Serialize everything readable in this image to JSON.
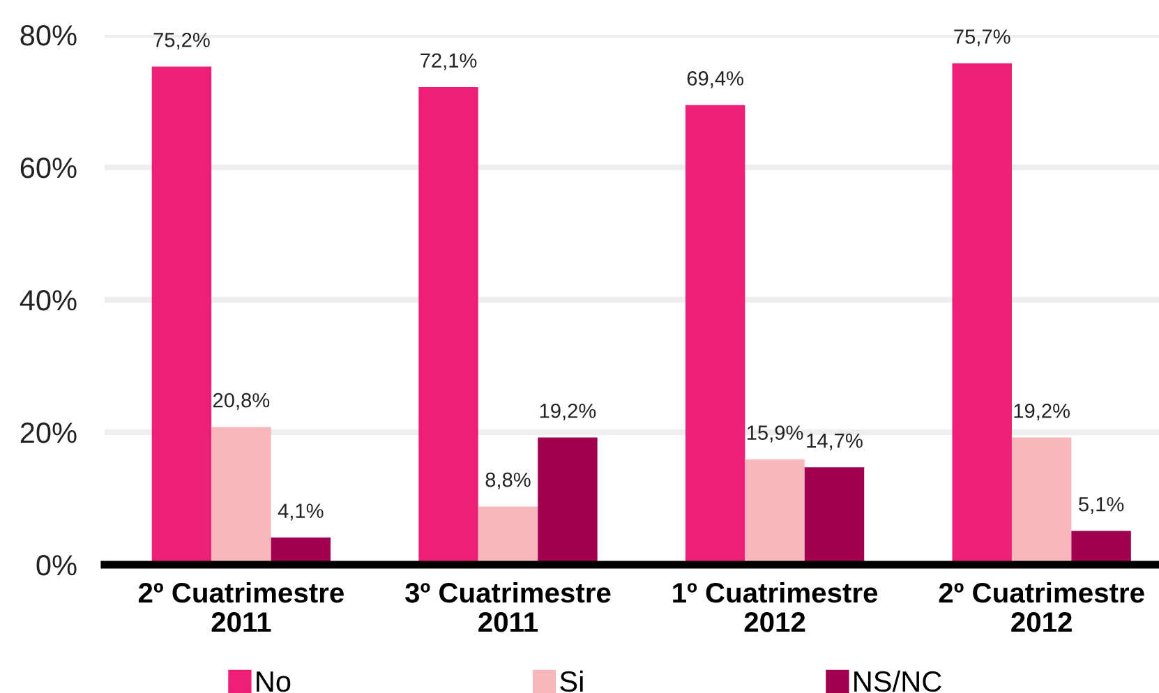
{
  "chart_data": {
    "type": "bar",
    "categories": [
      "2º Cuatrimestre\n2011",
      "3º Cuatrimestre\n2011",
      "1º Cuatrimestre\n2012",
      "2º Cuatrimestre\n2012"
    ],
    "series": [
      {
        "name": "No",
        "color": "#ee1f77",
        "values": [
          75.2,
          72.1,
          69.4,
          75.7
        ],
        "value_labels": [
          "75,2%",
          "72,1%",
          "69,4%",
          "75,7%"
        ]
      },
      {
        "name": "Si",
        "color": "#f6b7bd",
        "values": [
          20.8,
          8.8,
          15.9,
          19.2
        ],
        "value_labels": [
          "20,8%",
          "8,8%",
          "15,9%",
          "19,2%"
        ]
      },
      {
        "name": "NS/NC",
        "color": "#a0004f",
        "values": [
          4.1,
          19.2,
          14.7,
          5.1
        ],
        "value_labels": [
          "4,1%",
          "19,2%",
          "14,7%",
          "5,1%"
        ]
      }
    ],
    "ylim": [
      0,
      80
    ],
    "yticks": [
      {
        "value": 0,
        "label": "0%"
      },
      {
        "value": 20,
        "label": "20%"
      },
      {
        "value": 40,
        "label": "40%"
      },
      {
        "value": 60,
        "label": "60%"
      },
      {
        "value": 80,
        "label": "80%"
      }
    ],
    "grid": "y",
    "legend": "bottom"
  }
}
